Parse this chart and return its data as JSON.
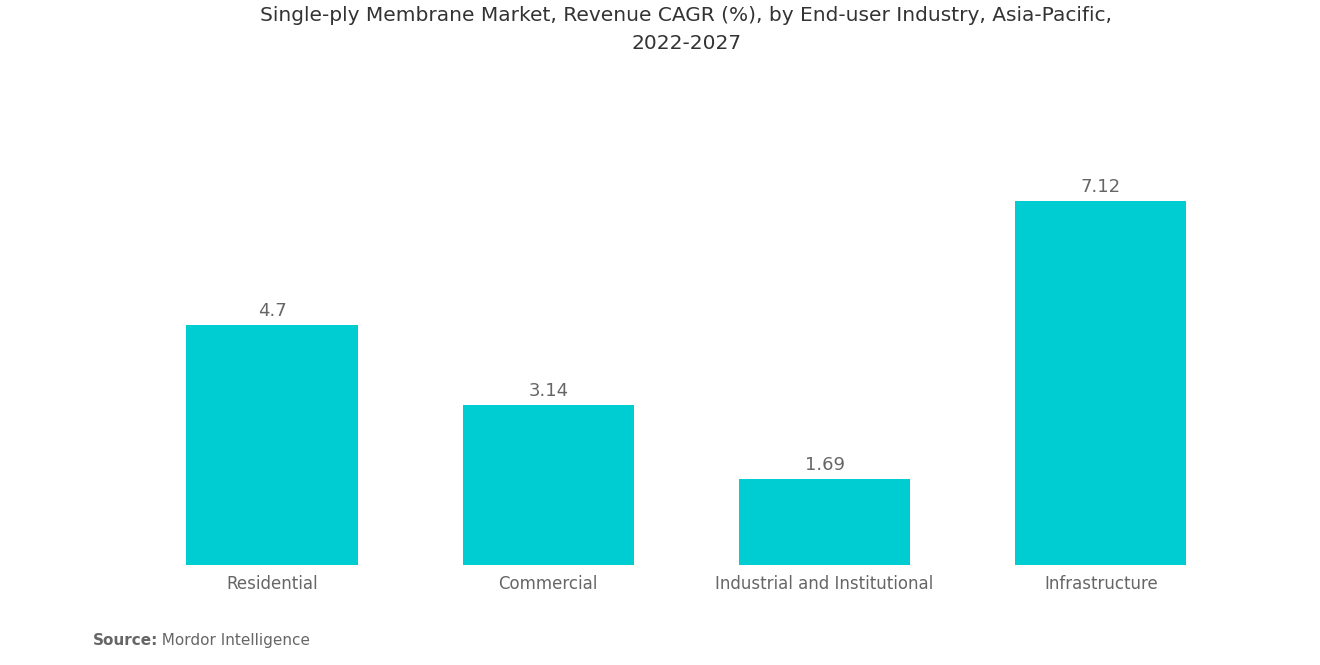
{
  "title": "Single-ply Membrane Market, Revenue CAGR (%), by End-user Industry, Asia-Pacific,\n2022-2027",
  "categories": [
    "Residential",
    "Commercial",
    "Industrial and Institutional",
    "Infrastructure"
  ],
  "values": [
    4.7,
    3.14,
    1.69,
    7.12
  ],
  "bar_color": "#00CDD1",
  "label_color": "#666666",
  "title_color": "#333333",
  "background_color": "#ffffff",
  "source_bold": "Source:",
  "source_normal": "  Mordor Intelligence",
  "title_fontsize": 14.5,
  "label_fontsize": 13,
  "tick_fontsize": 12,
  "source_fontsize": 11,
  "ylim": [
    0,
    9.5
  ],
  "bar_width": 0.62
}
